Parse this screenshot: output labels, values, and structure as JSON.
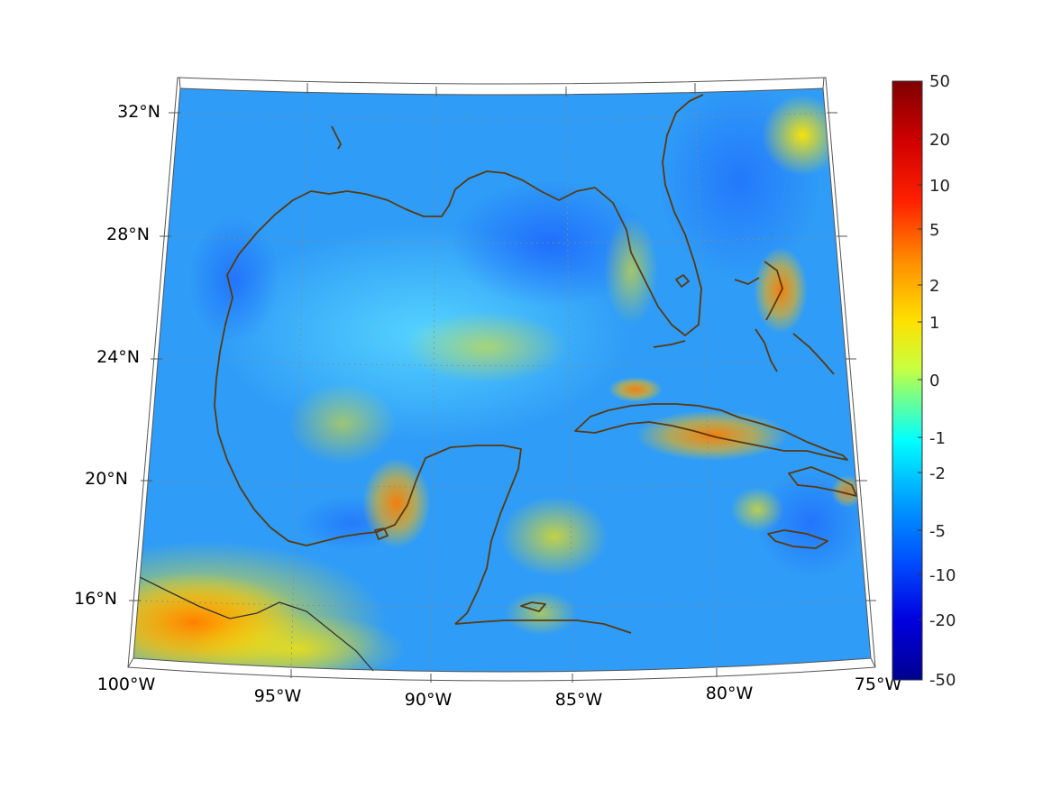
{
  "map": {
    "lat_labels": [
      "32°N",
      "28°N",
      "24°N",
      "20°N",
      "16°N"
    ],
    "lon_labels": [
      "100°W",
      "95°W",
      "90°W",
      "85°W",
      "80°W",
      "75°W"
    ]
  },
  "colorbar": {
    "labels": [
      "50",
      "20",
      "10",
      "5",
      "2",
      "1",
      "0",
      "-1",
      "-2",
      "-5",
      "-10",
      "-20",
      "-50"
    ],
    "colors": [
      "#7f0000",
      "#ff0000",
      "#ff8000",
      "#ffff00",
      "#80ff80",
      "#00ffff",
      "#0080ff",
      "#0000ff",
      "#00008f"
    ]
  },
  "colors": {
    "coastline": "#5a3a10",
    "border": "#333333",
    "grid": "#8a8a8a"
  }
}
